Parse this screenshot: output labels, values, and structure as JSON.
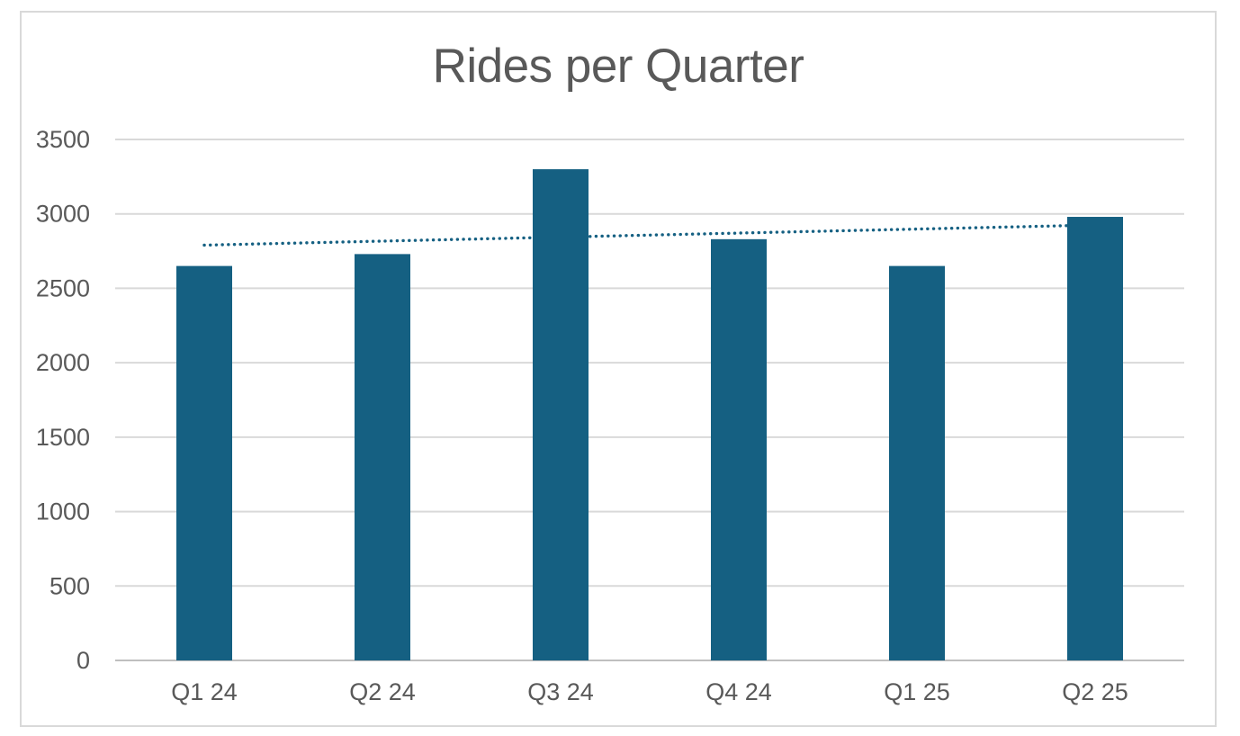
{
  "page": {
    "background": "#FFFFFF"
  },
  "chart_frame": {
    "border_color": "#D9D9D9",
    "background": "#FFFFFF"
  },
  "chart_data": {
    "type": "bar",
    "title": "Rides per Quarter",
    "xlabel": "",
    "ylabel": "",
    "categories": [
      "Q1 24",
      "Q2 24",
      "Q3 24",
      "Q4 24",
      "Q1 25",
      "Q2 25"
    ],
    "values": [
      2650,
      2730,
      3300,
      2830,
      2650,
      2980
    ],
    "ylim": [
      0,
      3500
    ],
    "yticks": [
      0,
      500,
      1000,
      1500,
      2000,
      2500,
      3000,
      3500
    ],
    "grid": true,
    "legend": "none",
    "trendline": {
      "type": "linear",
      "style": "dotted",
      "start_value": 2790,
      "end_value": 2925
    },
    "colors": {
      "bar": "#156082",
      "trendline": "#156082",
      "gridline": "#D9D9D9",
      "axis_line": "#BFBFBF",
      "label_text": "#595959",
      "title_text": "#595959"
    }
  }
}
